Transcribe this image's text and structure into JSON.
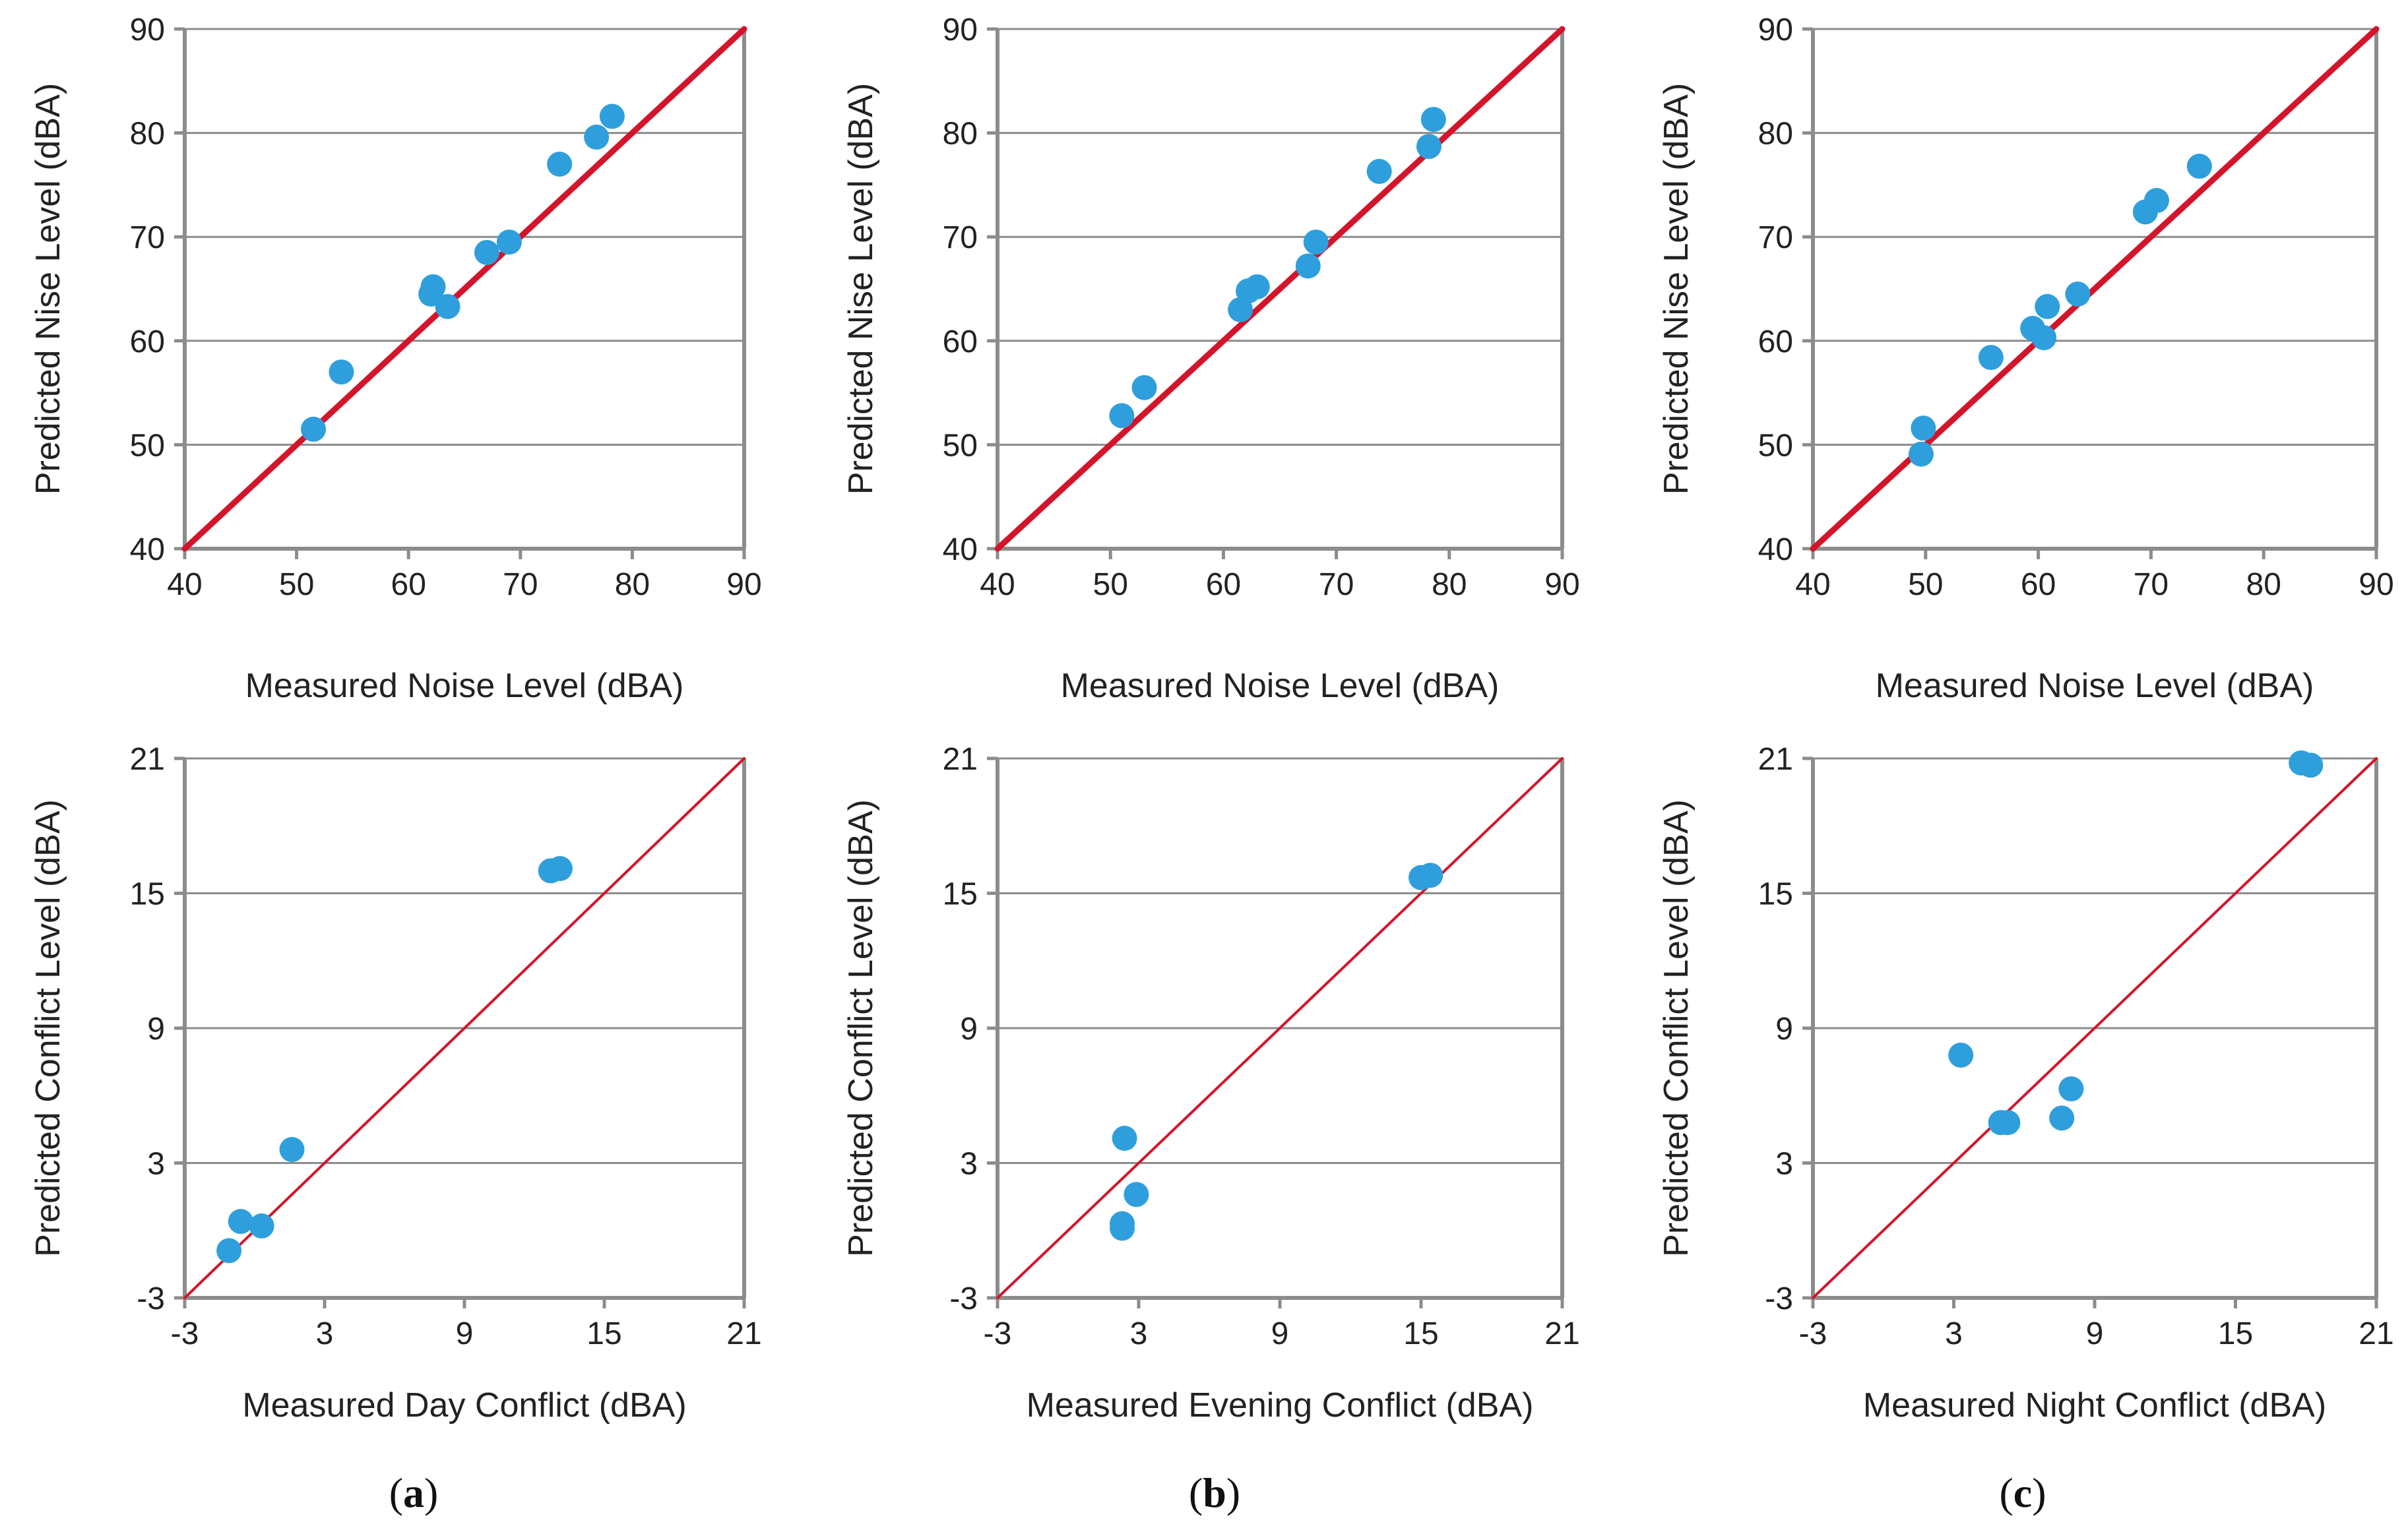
{
  "colors": {
    "point": "#2e9fdc",
    "line": "#d4142a",
    "grid": "#8c8c8c",
    "axis": "#8c8c8c",
    "text": "#222222"
  },
  "panel_labels": [
    "a",
    "b",
    "c"
  ],
  "chart_data": [
    {
      "type": "scatter",
      "row": 0,
      "col": 0,
      "xlabel": "Measured Noise Level (dBA)",
      "ylabel": "Predicted Nise Level (dBA)",
      "xlim": [
        40,
        90
      ],
      "ylim": [
        40,
        90
      ],
      "xticks": [
        40,
        50,
        60,
        70,
        80,
        90
      ],
      "yticks": [
        40,
        50,
        60,
        70,
        80,
        90
      ],
      "xtick_labels": [
        "40",
        "50",
        "60",
        "70",
        "80",
        "90"
      ],
      "ytick_labels": [
        "40",
        "50",
        "60",
        "70",
        "80",
        "90"
      ],
      "reference_line": [
        [
          40,
          40
        ],
        [
          90,
          90
        ]
      ],
      "line_style": "thick",
      "points": [
        [
          51.5,
          51.5
        ],
        [
          54.0,
          57.0
        ],
        [
          62.0,
          64.5
        ],
        [
          62.2,
          65.2
        ],
        [
          63.5,
          63.3
        ],
        [
          67.0,
          68.5
        ],
        [
          69.0,
          69.5
        ],
        [
          73.5,
          77.0
        ],
        [
          76.8,
          79.6
        ],
        [
          78.2,
          81.6
        ]
      ]
    },
    {
      "type": "scatter",
      "row": 0,
      "col": 1,
      "xlabel": "Measured Noise Level (dBA)",
      "ylabel": "Predicted Nise Level (dBA)",
      "xlim": [
        40,
        90
      ],
      "ylim": [
        40,
        90
      ],
      "xticks": [
        40,
        50,
        60,
        70,
        80,
        90
      ],
      "yticks": [
        40,
        50,
        60,
        70,
        80,
        90
      ],
      "xtick_labels": [
        "40",
        "50",
        "60",
        "70",
        "80",
        "90"
      ],
      "ytick_labels": [
        "40",
        "50",
        "60",
        "70",
        "80",
        "90"
      ],
      "reference_line": [
        [
          40,
          40
        ],
        [
          90,
          90
        ]
      ],
      "line_style": "thick",
      "points": [
        [
          51.0,
          52.8
        ],
        [
          53.0,
          55.5
        ],
        [
          61.5,
          63.0
        ],
        [
          62.2,
          64.8
        ],
        [
          63.0,
          65.2
        ],
        [
          67.5,
          67.2
        ],
        [
          68.2,
          69.5
        ],
        [
          73.8,
          76.3
        ],
        [
          78.2,
          78.7
        ],
        [
          78.6,
          81.3
        ]
      ]
    },
    {
      "type": "scatter",
      "row": 0,
      "col": 2,
      "xlabel": "Measured Noise Level (dBA)",
      "ylabel": "Predicted Nise Level (dBA)",
      "xlim": [
        40,
        90
      ],
      "ylim": [
        40,
        90
      ],
      "xticks": [
        40,
        50,
        60,
        70,
        80,
        90
      ],
      "yticks": [
        40,
        50,
        60,
        70,
        80,
        90
      ],
      "xtick_labels": [
        "40",
        "50",
        "60",
        "70",
        "80",
        "90"
      ],
      "ytick_labels": [
        "40",
        "50",
        "60",
        "70",
        "80",
        "90"
      ],
      "reference_line": [
        [
          40,
          40
        ],
        [
          90,
          90
        ]
      ],
      "line_style": "thick",
      "points": [
        [
          49.6,
          49.1
        ],
        [
          49.8,
          51.6
        ],
        [
          55.8,
          58.4
        ],
        [
          59.5,
          61.2
        ],
        [
          60.5,
          60.3
        ],
        [
          60.8,
          63.3
        ],
        [
          63.5,
          64.5
        ],
        [
          69.5,
          72.4
        ],
        [
          70.5,
          73.5
        ],
        [
          74.3,
          76.8
        ]
      ]
    },
    {
      "type": "scatter",
      "row": 1,
      "col": 0,
      "xlabel": "Measured Day Conflict (dBA)",
      "ylabel": "Predicted Conflict Level (dBA)",
      "xlim": [
        -3,
        21
      ],
      "ylim": [
        -3,
        21
      ],
      "xticks": [
        -3,
        3,
        9,
        15,
        21
      ],
      "yticks": [
        -3,
        3,
        9,
        15,
        21
      ],
      "xtick_labels": [
        "-3",
        "3",
        "9",
        "15",
        "21"
      ],
      "ytick_labels": [
        "-3",
        "3",
        "9",
        "15",
        "21"
      ],
      "reference_line": [
        [
          -3,
          -3
        ],
        [
          21,
          21
        ]
      ],
      "line_style": "thin",
      "points": [
        [
          -1.1,
          -0.9
        ],
        [
          -0.6,
          0.4
        ],
        [
          0.3,
          0.2
        ],
        [
          1.6,
          3.6
        ],
        [
          12.7,
          16.0
        ],
        [
          13.1,
          16.1
        ]
      ]
    },
    {
      "type": "scatter",
      "row": 1,
      "col": 1,
      "xlabel": "Measured Evening Conflict (dBA)",
      "ylabel": "Predicted Conflict Level (dBA)",
      "xlim": [
        -3,
        21
      ],
      "ylim": [
        -3,
        21
      ],
      "xticks": [
        -3,
        3,
        9,
        15,
        21
      ],
      "yticks": [
        -3,
        3,
        9,
        15,
        21
      ],
      "xtick_labels": [
        "-3",
        "3",
        "9",
        "15",
        "21"
      ],
      "ytick_labels": [
        "-3",
        "3",
        "9",
        "15",
        "21"
      ],
      "reference_line": [
        [
          -3,
          -3
        ],
        [
          21,
          21
        ]
      ],
      "line_style": "thin",
      "points": [
        [
          2.3,
          0.1
        ],
        [
          2.3,
          0.3
        ],
        [
          2.4,
          4.1
        ],
        [
          2.9,
          1.6
        ],
        [
          15.0,
          15.7
        ],
        [
          15.4,
          15.8
        ]
      ]
    },
    {
      "type": "scatter",
      "row": 1,
      "col": 2,
      "xlabel": "Measured Night Conflict (dBA)",
      "ylabel": "Predicted Conflict Level (dBA)",
      "xlim": [
        -3,
        21
      ],
      "ylim": [
        -3,
        21
      ],
      "xticks": [
        -3,
        3,
        9,
        15,
        21
      ],
      "yticks": [
        -3,
        3,
        9,
        15,
        21
      ],
      "xtick_labels": [
        "-3",
        "3",
        "9",
        "15",
        "21"
      ],
      "ytick_labels": [
        "-3",
        "3",
        "9",
        "15",
        "21"
      ],
      "reference_line": [
        [
          -3,
          -3
        ],
        [
          21,
          21
        ]
      ],
      "line_style": "thin",
      "points": [
        [
          3.3,
          7.8
        ],
        [
          5.0,
          4.8
        ],
        [
          5.3,
          4.8
        ],
        [
          7.6,
          5.0
        ],
        [
          8.0,
          6.3
        ],
        [
          17.8,
          20.8
        ],
        [
          18.2,
          20.7
        ]
      ]
    }
  ]
}
